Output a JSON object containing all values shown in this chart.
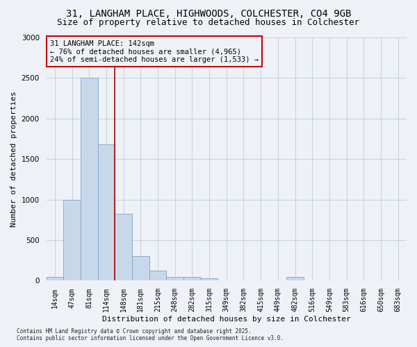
{
  "title_line1": "31, LANGHAM PLACE, HIGHWOODS, COLCHESTER, CO4 9GB",
  "title_line2": "Size of property relative to detached houses in Colchester",
  "xlabel": "Distribution of detached houses by size in Colchester",
  "ylabel": "Number of detached properties",
  "footnote": "Contains HM Land Registry data © Crown copyright and database right 2025.\nContains public sector information licensed under the Open Government Licence v3.0.",
  "bins": [
    "14sqm",
    "47sqm",
    "81sqm",
    "114sqm",
    "148sqm",
    "181sqm",
    "215sqm",
    "248sqm",
    "282sqm",
    "315sqm",
    "349sqm",
    "382sqm",
    "415sqm",
    "449sqm",
    "482sqm",
    "516sqm",
    "549sqm",
    "583sqm",
    "616sqm",
    "650sqm",
    "683sqm"
  ],
  "values": [
    50,
    1000,
    2500,
    1680,
    830,
    300,
    120,
    50,
    50,
    30,
    0,
    0,
    0,
    0,
    50,
    0,
    0,
    0,
    0,
    0,
    0
  ],
  "bar_color": "#c8d8eb",
  "bar_edge_color": "#7aa4c8",
  "vline_x_index": 3.5,
  "vline_color": "#aa0000",
  "annotation_text": "31 LANGHAM PLACE: 142sqm\n← 76% of detached houses are smaller (4,965)\n24% of semi-detached houses are larger (1,533) →",
  "annotation_box_color": "#cc0000",
  "ylim": [
    0,
    3000
  ],
  "yticks": [
    0,
    500,
    1000,
    1500,
    2000,
    2500,
    3000
  ],
  "grid_color": "#c8d4e0",
  "background_color": "#eef2f7",
  "title_fontsize": 10,
  "subtitle_fontsize": 9,
  "axis_label_fontsize": 8,
  "tick_fontsize": 7,
  "annotation_fontsize": 7.5,
  "footnote_fontsize": 5.5
}
